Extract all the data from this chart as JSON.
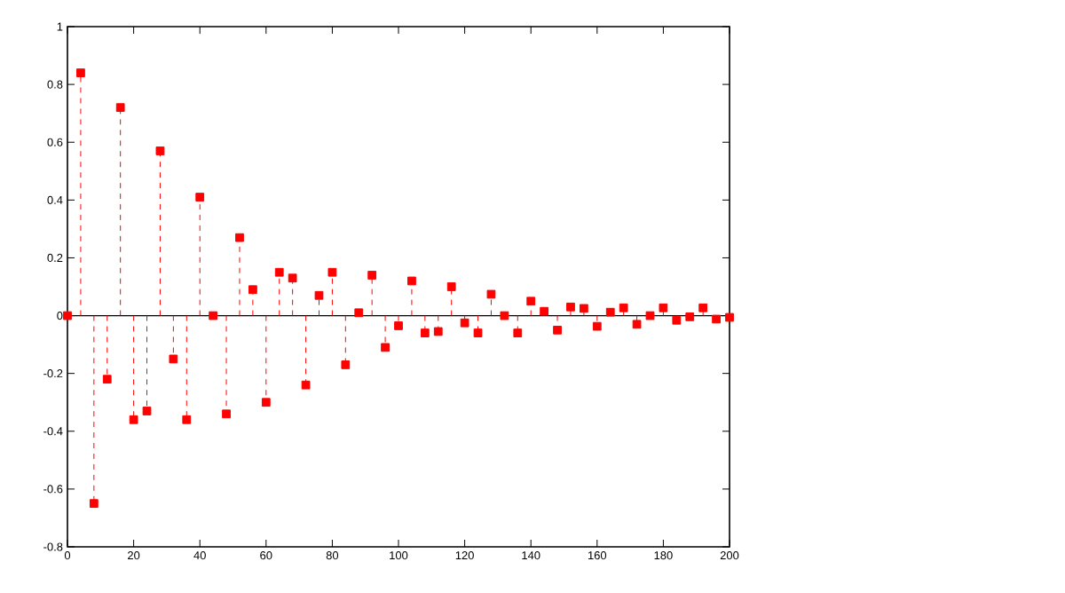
{
  "chart_data": {
    "type": "lollipop",
    "x": [
      0,
      4,
      8,
      12,
      16,
      20,
      24,
      28,
      32,
      36,
      40,
      44,
      48,
      52,
      56,
      60,
      64,
      68,
      72,
      76,
      80,
      84,
      88,
      92,
      96,
      100,
      104,
      108,
      112,
      116,
      120,
      124,
      128,
      132,
      136,
      140,
      144,
      148,
      152,
      156,
      160,
      164,
      168,
      172,
      176,
      180,
      184,
      188,
      192,
      196,
      200
    ],
    "values": [
      0,
      0.84,
      -0.65,
      -0.22,
      0.72,
      -0.36,
      -0.33,
      0.57,
      -0.15,
      -0.36,
      0.41,
      0.0,
      -0.34,
      0.27,
      0.09,
      -0.3,
      0.15,
      0.13,
      -0.24,
      0.07,
      0.15,
      -0.17,
      0.01,
      0.14,
      -0.11,
      -0.035,
      0.12,
      -0.06,
      -0.055,
      0.1,
      -0.025,
      -0.06,
      0.074,
      0.0,
      -0.06,
      0.05,
      0.015,
      -0.05,
      0.03,
      0.025,
      -0.037,
      0.012,
      0.027,
      -0.03,
      0.0,
      0.027,
      -0.016,
      -0.004,
      0.027,
      -0.012,
      -0.006
    ],
    "color": "#ff0000",
    "marker": "square",
    "line_style": "dashed",
    "xlim": [
      0,
      200
    ],
    "ylim": [
      -0.8,
      1
    ],
    "xticks": [
      0,
      20,
      40,
      60,
      80,
      100,
      120,
      140,
      160,
      180,
      200
    ],
    "yticks": [
      -0.8,
      -0.6,
      -0.4,
      -0.2,
      0,
      0.2,
      0.4,
      0.6,
      0.8,
      1
    ]
  }
}
